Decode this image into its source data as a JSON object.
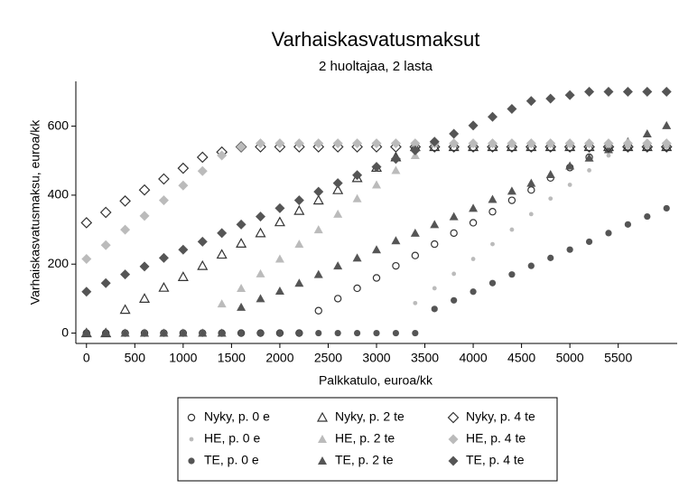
{
  "chart_data": {
    "type": "scatter",
    "title": "Varhaiskasvatusmaksut",
    "subtitle": "2 huoltajaa, 2 lasta",
    "x_label": "Palkkatulo, euroa/kk",
    "y_label": "Varhaiskasvatusmaksu, euroa/kk",
    "xlim": [
      -110,
      6110
    ],
    "ylim": [
      -30,
      730
    ],
    "xticks": [
      0,
      500,
      1000,
      1500,
      2000,
      2500,
      3000,
      3500,
      4000,
      4500,
      5000,
      5500
    ],
    "yticks": [
      0,
      200,
      400,
      600
    ],
    "grid": false,
    "legend": "bottom",
    "x": [
      0,
      200,
      400,
      600,
      800,
      1000,
      1200,
      1400,
      1600,
      1800,
      2000,
      2200,
      2400,
      2600,
      2800,
      3000,
      3200,
      3400,
      3600,
      3800,
      4000,
      4200,
      4400,
      4600,
      4800,
      5000,
      5200,
      5400,
      5600,
      5800,
      6000
    ],
    "series": [
      {
        "name": "Nyky, p. 0 e",
        "marker": "circle-open",
        "color": "#333333",
        "values": [
          0,
          0,
          0,
          0,
          0,
          0,
          0,
          0,
          0,
          0,
          0,
          0,
          65,
          100,
          130,
          160,
          195,
          225,
          258,
          290,
          320,
          352,
          385,
          415,
          450,
          480,
          510,
          540,
          540,
          540,
          540
        ]
      },
      {
        "name": "HE, p. 0 e",
        "marker": "dot",
        "color": "#bbbbbb",
        "values": [
          0,
          0,
          0,
          0,
          0,
          0,
          0,
          0,
          0,
          0,
          0,
          0,
          0,
          0,
          0,
          0,
          0,
          87,
          130,
          172,
          215,
          258,
          300,
          345,
          390,
          430,
          472,
          515,
          540,
          540,
          540
        ]
      },
      {
        "name": "TE, p. 0 e",
        "marker": "circle",
        "color": "#555555",
        "values": [
          0,
          0,
          0,
          0,
          0,
          0,
          0,
          0,
          0,
          0,
          0,
          0,
          0,
          0,
          0,
          0,
          0,
          0,
          70,
          95,
          120,
          145,
          170,
          195,
          218,
          242,
          265,
          290,
          315,
          338,
          362
        ]
      },
      {
        "name": "Nyky, p. 2 te",
        "marker": "triangle-open",
        "color": "#333333",
        "values": [
          0,
          0,
          68,
          100,
          132,
          163,
          195,
          228,
          260,
          290,
          322,
          355,
          385,
          415,
          450,
          480,
          510,
          540,
          540,
          540,
          540,
          540,
          540,
          540,
          540,
          540,
          540,
          540,
          540,
          540,
          540
        ]
      },
      {
        "name": "HE, p. 2 te",
        "marker": "triangle",
        "color": "#bbbbbb",
        "values": [
          0,
          0,
          0,
          0,
          0,
          0,
          0,
          85,
          130,
          172,
          215,
          258,
          300,
          345,
          390,
          430,
          472,
          515,
          550,
          550,
          550,
          550,
          550,
          550,
          550,
          550,
          550,
          550,
          550,
          550,
          550
        ]
      },
      {
        "name": "TE, p. 2 te",
        "marker": "triangle",
        "color": "#555555",
        "values": [
          0,
          0,
          0,
          0,
          0,
          0,
          0,
          0,
          75,
          100,
          122,
          145,
          170,
          195,
          218,
          242,
          268,
          290,
          315,
          338,
          362,
          388,
          412,
          435,
          460,
          485,
          508,
          532,
          555,
          578,
          602
        ]
      },
      {
        "name": "Nyky, p. 4 te",
        "marker": "diamond-open",
        "color": "#333333",
        "values": [
          320,
          350,
          383,
          415,
          447,
          478,
          510,
          525,
          540,
          540,
          540,
          540,
          540,
          540,
          540,
          540,
          540,
          540,
          540,
          540,
          540,
          540,
          540,
          540,
          540,
          540,
          540,
          540,
          540,
          540,
          540
        ]
      },
      {
        "name": "HE, p. 4 te",
        "marker": "diamond",
        "color": "#bbbbbb",
        "values": [
          215,
          255,
          300,
          340,
          385,
          428,
          470,
          515,
          540,
          550,
          550,
          550,
          550,
          550,
          550,
          550,
          550,
          550,
          550,
          550,
          550,
          550,
          550,
          550,
          550,
          550,
          550,
          550,
          550,
          550,
          550
        ]
      },
      {
        "name": "TE, p. 4 te",
        "marker": "diamond",
        "color": "#555555",
        "values": [
          120,
          145,
          170,
          193,
          218,
          242,
          265,
          290,
          315,
          338,
          362,
          385,
          410,
          435,
          458,
          482,
          505,
          530,
          555,
          578,
          602,
          627,
          650,
          673,
          680,
          690,
          700,
          700,
          700,
          700,
          700
        ]
      }
    ]
  }
}
